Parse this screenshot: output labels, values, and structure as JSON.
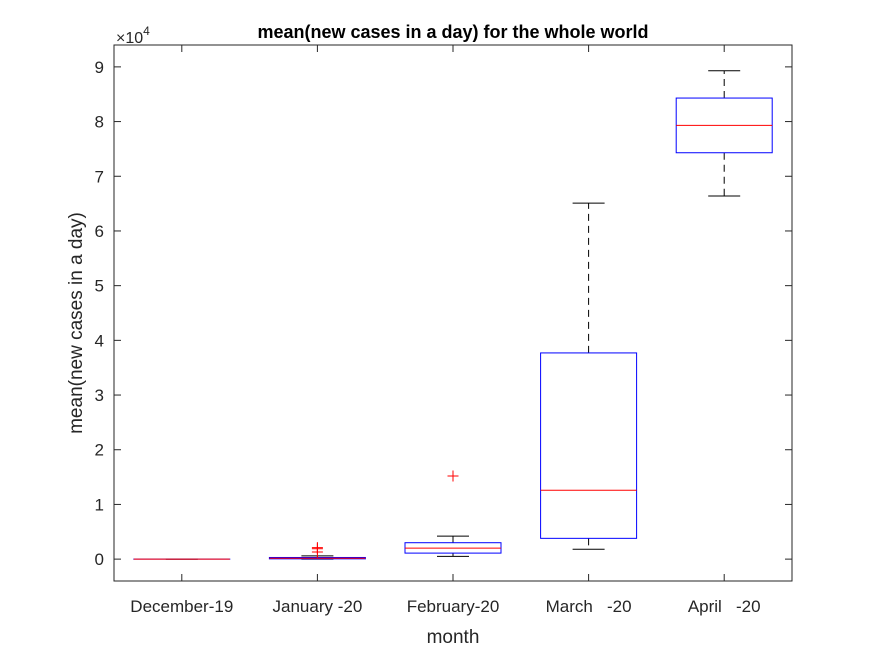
{
  "chart_data": {
    "type": "box",
    "title": "mean(new cases in a day) for the whole world",
    "xlabel": "month",
    "ylabel": "mean(new cases in a day)",
    "y_multiplier": "×10",
    "y_exponent": "4",
    "categories": [
      "December-19",
      "January -20",
      "February-20",
      "March   -20",
      "April   -20"
    ],
    "ylim": [
      -4000,
      94000
    ],
    "yticks": [
      0,
      10000,
      20000,
      30000,
      40000,
      50000,
      60000,
      70000,
      80000,
      90000
    ],
    "ytick_labels": [
      "0",
      "1",
      "2",
      "3",
      "4",
      "5",
      "6",
      "7",
      "8",
      "9"
    ],
    "boxes": [
      {
        "category": "December-19",
        "min": 0,
        "q1": 0,
        "median": 0,
        "q3": 0,
        "max": 0,
        "outliers": []
      },
      {
        "category": "January -20",
        "min": 0,
        "q1": 50,
        "median": 150,
        "q3": 300,
        "max": 600,
        "outliers": [
          1300,
          1900,
          2100
        ]
      },
      {
        "category": "February-20",
        "min": 500,
        "q1": 1100,
        "median": 2000,
        "q3": 3000,
        "max": 4200,
        "outliers": [
          15200
        ]
      },
      {
        "category": "March   -20",
        "min": 1800,
        "q1": 3800,
        "median": 12600,
        "q3": 37700,
        "max": 65100,
        "outliers": []
      },
      {
        "category": "April   -20",
        "min": 66400,
        "q1": 74300,
        "median": 79300,
        "q3": 84300,
        "max": 89300,
        "outliers": []
      }
    ],
    "colors": {
      "box": "#0000ff",
      "median": "#ff0000",
      "whisker": "#000000",
      "outlier": "#ff0000",
      "axis": "#262626"
    },
    "grid": false,
    "legend": "none"
  }
}
